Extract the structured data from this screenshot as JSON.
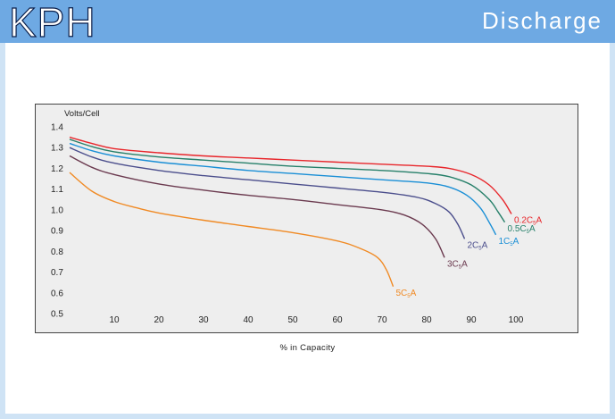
{
  "header": {
    "brand": "KPH",
    "section_title": "Discharge"
  },
  "chart_data": {
    "type": "line",
    "ylabel": "Volts/Cell",
    "xlabel": "% in Capacity",
    "xlim": [
      0,
      105
    ],
    "ylim": [
      0.5,
      1.4
    ],
    "x_ticks": [
      10,
      20,
      30,
      40,
      50,
      60,
      70,
      80,
      90,
      100
    ],
    "y_ticks": [
      "1.4",
      "1.3",
      "1.2",
      "1.1",
      "1.0",
      "0.9",
      "0.8",
      "0.7",
      "0.6",
      "0.5"
    ],
    "grid": false,
    "series": [
      {
        "name": "0.2C5A",
        "label_main": "0.2C",
        "label_sub": "5",
        "label_unit": "A",
        "color": "#e8262b",
        "points": [
          [
            0,
            1.35
          ],
          [
            5,
            1.32
          ],
          [
            10,
            1.295
          ],
          [
            20,
            1.275
          ],
          [
            30,
            1.26
          ],
          [
            40,
            1.25
          ],
          [
            50,
            1.24
          ],
          [
            60,
            1.23
          ],
          [
            70,
            1.22
          ],
          [
            80,
            1.21
          ],
          [
            85,
            1.2
          ],
          [
            90,
            1.17
          ],
          [
            94,
            1.12
          ],
          [
            97,
            1.05
          ],
          [
            99,
            0.98
          ]
        ]
      },
      {
        "name": "0.5C5A",
        "label_main": "0.5C",
        "label_sub": "5",
        "label_unit": "A",
        "color": "#27806a",
        "points": [
          [
            0,
            1.34
          ],
          [
            5,
            1.305
          ],
          [
            10,
            1.28
          ],
          [
            20,
            1.255
          ],
          [
            30,
            1.24
          ],
          [
            40,
            1.225
          ],
          [
            50,
            1.21
          ],
          [
            60,
            1.2
          ],
          [
            70,
            1.19
          ],
          [
            80,
            1.175
          ],
          [
            85,
            1.16
          ],
          [
            90,
            1.12
          ],
          [
            94,
            1.05
          ],
          [
            96,
            0.99
          ],
          [
            97.5,
            0.94
          ]
        ]
      },
      {
        "name": "1C5A",
        "label_main": "1C",
        "label_sub": "5",
        "label_unit": "A",
        "color": "#1a8fd6",
        "points": [
          [
            0,
            1.32
          ],
          [
            5,
            1.285
          ],
          [
            10,
            1.26
          ],
          [
            20,
            1.23
          ],
          [
            30,
            1.21
          ],
          [
            40,
            1.19
          ],
          [
            50,
            1.175
          ],
          [
            60,
            1.16
          ],
          [
            70,
            1.145
          ],
          [
            80,
            1.13
          ],
          [
            85,
            1.11
          ],
          [
            89,
            1.07
          ],
          [
            92,
            1.01
          ],
          [
            94,
            0.94
          ],
          [
            95.5,
            0.88
          ]
        ]
      },
      {
        "name": "2C5A",
        "label_main": "2C",
        "label_sub": "5",
        "label_unit": "A",
        "color": "#4b4e8c",
        "points": [
          [
            0,
            1.3
          ],
          [
            5,
            1.255
          ],
          [
            10,
            1.225
          ],
          [
            20,
            1.19
          ],
          [
            30,
            1.165
          ],
          [
            40,
            1.145
          ],
          [
            50,
            1.125
          ],
          [
            60,
            1.105
          ],
          [
            70,
            1.085
          ],
          [
            78,
            1.06
          ],
          [
            82,
            1.03
          ],
          [
            85,
            0.99
          ],
          [
            87,
            0.93
          ],
          [
            88.5,
            0.86
          ]
        ]
      },
      {
        "name": "3C5A",
        "label_main": "3C",
        "label_sub": "5",
        "label_unit": "A",
        "color": "#6b3a4f",
        "points": [
          [
            0,
            1.26
          ],
          [
            5,
            1.205
          ],
          [
            10,
            1.17
          ],
          [
            20,
            1.125
          ],
          [
            30,
            1.095
          ],
          [
            40,
            1.07
          ],
          [
            50,
            1.05
          ],
          [
            60,
            1.025
          ],
          [
            70,
            1.0
          ],
          [
            75,
            0.975
          ],
          [
            79,
            0.93
          ],
          [
            82,
            0.86
          ],
          [
            84,
            0.77
          ]
        ]
      },
      {
        "name": "5C5A",
        "label_main": "5C",
        "label_sub": "5",
        "label_unit": "A",
        "color": "#f08a24",
        "points": [
          [
            0,
            1.18
          ],
          [
            5,
            1.09
          ],
          [
            10,
            1.04
          ],
          [
            15,
            1.01
          ],
          [
            20,
            0.985
          ],
          [
            30,
            0.95
          ],
          [
            40,
            0.92
          ],
          [
            50,
            0.89
          ],
          [
            60,
            0.85
          ],
          [
            65,
            0.815
          ],
          [
            69,
            0.77
          ],
          [
            71,
            0.71
          ],
          [
            72.5,
            0.63
          ]
        ]
      }
    ]
  }
}
